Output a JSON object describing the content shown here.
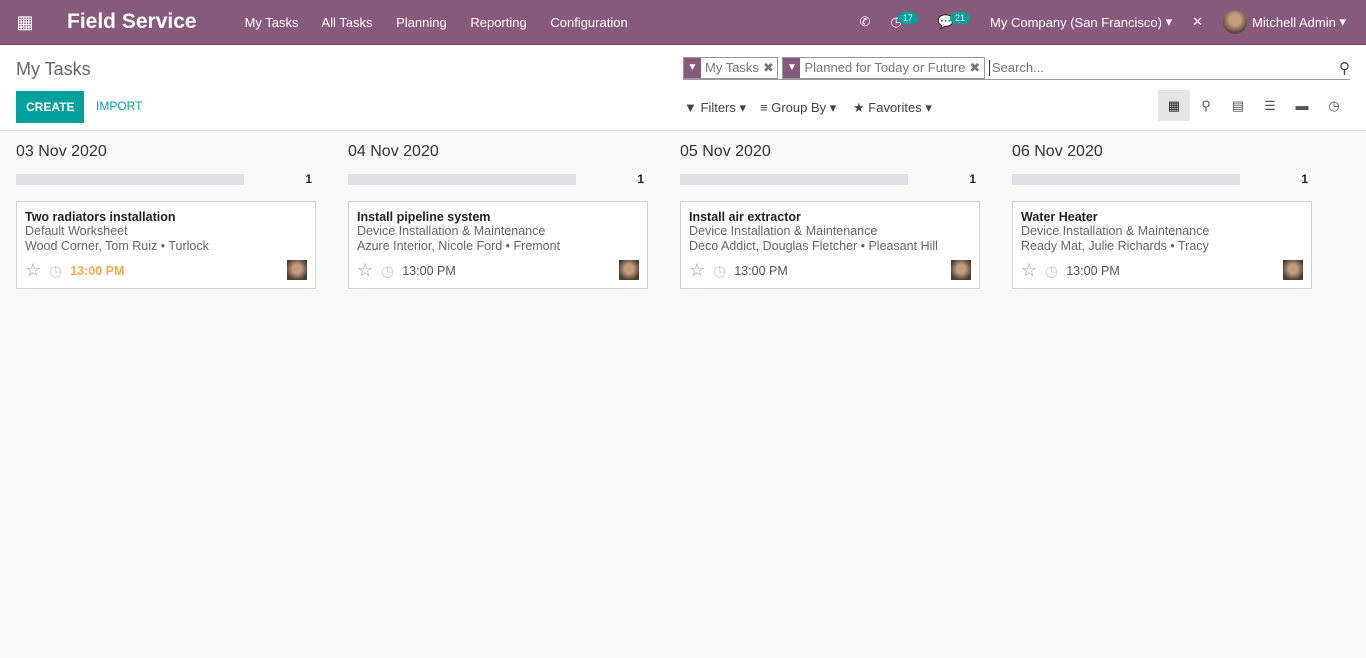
{
  "nav": {
    "app_title": "Field Service",
    "menu": [
      "My Tasks",
      "All Tasks",
      "Planning",
      "Reporting",
      "Configuration"
    ],
    "activity_count": "17",
    "message_count": "21",
    "company": "My Company (San Francisco)",
    "user": "Mitchell Admin"
  },
  "control": {
    "title": "My Tasks",
    "create": "CREATE",
    "import": "IMPORT",
    "facets": [
      "My Tasks",
      "Planned for Today or Future"
    ],
    "search_placeholder": "Search...",
    "filters": "Filters",
    "group_by": "Group By",
    "favorites": "Favorites"
  },
  "columns": [
    {
      "date": "03 Nov 2020",
      "count": "1",
      "card": {
        "name": "Two radiators installation",
        "line1": "Default Worksheet",
        "line2": "Wood Corner, Tom Ruiz • Turlock",
        "time": "13:00 PM",
        "warn": true
      }
    },
    {
      "date": "04 Nov 2020",
      "count": "1",
      "card": {
        "name": "Install pipeline system",
        "line1": "Device Installation & Maintenance",
        "line2": "Azure Interior, Nicole Ford • Fremont",
        "time": "13:00 PM"
      }
    },
    {
      "date": "05 Nov 2020",
      "count": "1",
      "card": {
        "name": "Install air extractor",
        "line1": "Device Installation & Maintenance",
        "line2": "Deco Addict, Douglas Fletcher • Pleasant Hill",
        "time": "13:00 PM"
      }
    },
    {
      "date": "06 Nov 2020",
      "count": "1",
      "card": {
        "name": "Water Heater",
        "line1": "Device Installation & Maintenance",
        "line2": "Ready Mat, Julie Richards • Tracy",
        "time": "13:00 PM"
      }
    }
  ],
  "colors": {
    "brand": "#875a7b",
    "accent": "#00a09d",
    "warning": "#f0ad4e"
  }
}
